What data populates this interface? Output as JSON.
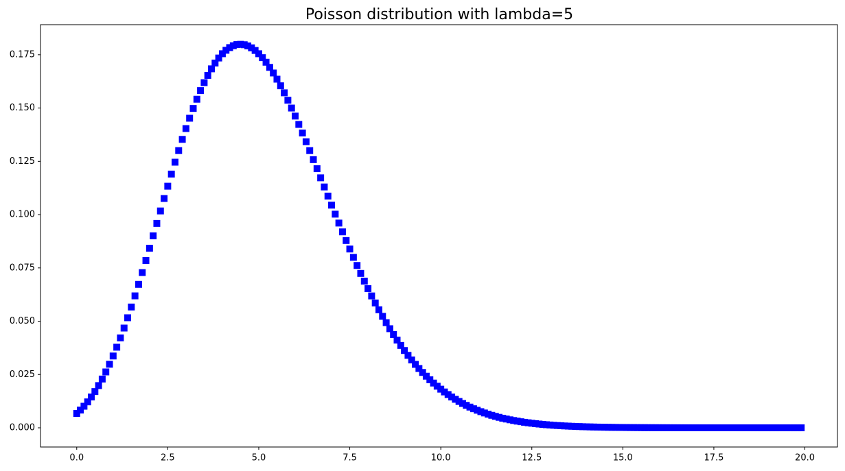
{
  "chart_data": {
    "type": "scatter",
    "title": "Poisson distribution with lambda=5",
    "marker": "square",
    "color": "#0000ff",
    "x": [
      0,
      0.1,
      0.2,
      0.3,
      0.4,
      0.5,
      0.6,
      0.7,
      0.8,
      0.9,
      1,
      1.1,
      1.2,
      1.3,
      1.4,
      1.5,
      1.6,
      1.7,
      1.8,
      1.9,
      2,
      2.1,
      2.2,
      2.3,
      2.4,
      2.5,
      2.6,
      2.7,
      2.8,
      2.9,
      3,
      3.1,
      3.2,
      3.3,
      3.4,
      3.5,
      3.6,
      3.7,
      3.8,
      3.9,
      4,
      4.1,
      4.2,
      4.3,
      4.4,
      4.5,
      4.6,
      4.7,
      4.8,
      4.9,
      5,
      5.1,
      5.2,
      5.3,
      5.4,
      5.5,
      5.6,
      5.7,
      5.8,
      5.9,
      6,
      6.1,
      6.2,
      6.3,
      6.4,
      6.5,
      6.6,
      6.7,
      6.8,
      6.9,
      7,
      7.1,
      7.2,
      7.3,
      7.4,
      7.5,
      7.6,
      7.7,
      7.8,
      7.9,
      8,
      8.1,
      8.2,
      8.3,
      8.4,
      8.5,
      8.6,
      8.7,
      8.8,
      8.9,
      9,
      9.1,
      9.2,
      9.3,
      9.4,
      9.5,
      9.6,
      9.7,
      9.8,
      9.9,
      10,
      10.1,
      10.2,
      10.3,
      10.4,
      10.5,
      10.6,
      10.7,
      10.8,
      10.9,
      11,
      11.1,
      11.2,
      11.3,
      11.4,
      11.5,
      11.6,
      11.7,
      11.8,
      11.9,
      12,
      12.1,
      12.2,
      12.3,
      12.4,
      12.5,
      12.6,
      12.7,
      12.8,
      12.9,
      13,
      13.1,
      13.2,
      13.3,
      13.4,
      13.5,
      13.6,
      13.7,
      13.8,
      13.9,
      14,
      14.1,
      14.2,
      14.3,
      14.4,
      14.5,
      14.6,
      14.7,
      14.8,
      14.9,
      15,
      15.1,
      15.2,
      15.3,
      15.4,
      15.5,
      15.6,
      15.7,
      15.8,
      15.9,
      16,
      16.1,
      16.2,
      16.3,
      16.4,
      16.5,
      16.6,
      16.7,
      16.8,
      16.9,
      17,
      17.1,
      17.2,
      17.3,
      17.4,
      17.5,
      17.6,
      17.7,
      17.8,
      17.9,
      18,
      18.1,
      18.2,
      18.3,
      18.4,
      18.5,
      18.6,
      18.7,
      18.8,
      18.9,
      19,
      19.1,
      19.2,
      19.3,
      19.4,
      19.5,
      19.6,
      19.7,
      19.8,
      19.9
    ],
    "values": [
      0.006738,
      0.008319,
      0.010125,
      0.012167,
      0.014457,
      0.017,
      0.019806,
      0.022878,
      0.026217,
      0.029821,
      0.03369,
      0.037815,
      0.042188,
      0.046796,
      0.051632,
      0.056667,
      0.061894,
      0.067288,
      0.072825,
      0.078476,
      0.084224,
      0.090036,
      0.095881,
      0.10173,
      0.107567,
      0.113333,
      0.119027,
      0.124607,
      0.130045,
      0.135303,
      0.140374,
      0.145219,
      0.149814,
      0.154136,
      0.158187,
      0.161905,
      0.165315,
      0.168388,
      0.171112,
      0.173465,
      0.175467,
      0.177096,
      0.17835,
      0.179228,
      0.179758,
      0.179894,
      0.17969,
      0.179136,
      0.178242,
      0.177005,
      0.175467,
      0.173624,
      0.17149,
      0.169083,
      0.166443,
      0.16354,
      0.160438,
      0.157137,
      0.153657,
      0.150004,
      0.146223,
      0.142315,
      0.138298,
      0.134193,
      0.130034,
      0.1258,
      0.121544,
      0.117266,
      0.112983,
      0.108699,
      0.104445,
      0.100222,
      0.09604,
      0.091913,
      0.087861,
      0.083867,
      0.079963,
      0.076147,
      0.072425,
      0.068797,
      0.065278,
      0.061865,
      0.058561,
      0.055369,
      0.052298,
      0.049333,
      0.04649,
      0.043762,
      0.041151,
      0.03865,
      0.036266,
      0.033992,
      0.031827,
      0.029768,
      0.027818,
      0.025965,
      0.024214,
      0.022558,
      0.020995,
      0.01952,
      0.018133,
      0.016828,
      0.015601,
      0.01445,
      0.013374,
      0.012364,
      0.011422,
      0.010541,
      0.00972,
      0.008954,
      0.008242,
      0.00758,
      0.006965,
      0.006394,
      0.005866,
      0.005376,
      0.004923,
      0.004505,
      0.004119,
      0.003762,
      0.003434,
      0.003132,
      0.002854,
      0.002599,
      0.002365,
      0.00215,
      0.001954,
      0.001774,
      0.001609,
      0.001458,
      0.001321,
      0.001196,
      0.001081,
      0.000977,
      0.000883,
      0.000796,
      0.000718,
      0.000647,
      0.000583,
      0.000525,
      0.000472,
      0.000424,
      0.000381,
      0.000342,
      0.000306,
      0.000275,
      0.000246,
      0.00022,
      0.000197,
      0.000176,
      0.000157,
      0.00014,
      0.000125,
      0.000112,
      9.95e-05,
      8.86e-05,
      7.88e-05,
      7.01e-05,
      6.23e-05,
      5.54e-05,
      4.92e-05,
      4.36e-05,
      3.87e-05,
      3.42e-05,
      3.03e-05,
      2.68e-05,
      2.37e-05,
      2.1e-05,
      1.85e-05,
      1.64e-05,
      1.45e-05,
      1.27e-05,
      1.12e-05,
      9.9e-06,
      8.7e-06,
      7.7e-06,
      6.7e-06,
      5.9e-06,
      5.2e-06,
      4.6e-06,
      4e-06,
      3.5e-06,
      3.1e-06,
      2.7e-06,
      2.4e-06,
      2.1e-06,
      1.8e-06,
      1.6e-06,
      1.4e-06,
      1.2e-06,
      1.1e-06,
      9e-07,
      8e-07,
      7e-07,
      6e-07,
      5e-07,
      5e-07,
      4e-07,
      3e-07,
      3e-07
    ],
    "xlim": [
      -0.995,
      20.895
    ],
    "xticks": [
      {
        "value": 0,
        "label": "0.0"
      },
      2.5,
      {
        "value": 5,
        "label": "5.0"
      },
      7.5,
      {
        "value": 10,
        "label": "10.0"
      },
      12.5,
      {
        "value": 15,
        "label": "15.0"
      },
      17.5,
      {
        "value": 20,
        "label": "20.0"
      }
    ],
    "ylim": [
      -0.009,
      0.1891
    ],
    "yticks": [
      {
        "value": 0,
        "label": "0.000"
      },
      {
        "value": 0.025,
        "label": "0.025"
      },
      {
        "value": 0.05,
        "label": "0.050"
      },
      {
        "value": 0.075,
        "label": "0.075"
      },
      {
        "value": 0.1,
        "label": "0.100"
      },
      {
        "value": 0.125,
        "label": "0.125"
      },
      {
        "value": 0.15,
        "label": "0.150"
      },
      {
        "value": 0.175,
        "label": "0.175"
      }
    ],
    "grid": false
  }
}
